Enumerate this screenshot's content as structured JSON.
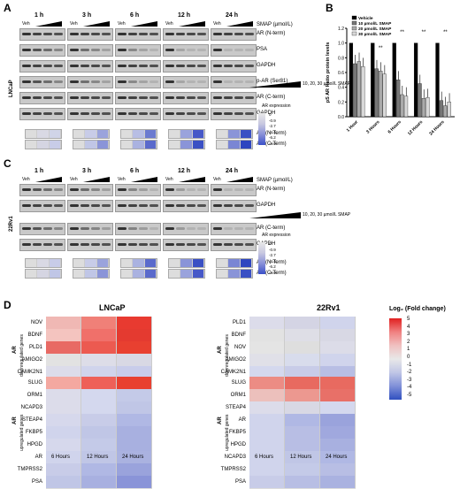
{
  "panels": {
    "A": "A",
    "B": "B",
    "C": "C",
    "D": "D"
  },
  "timepoints": [
    "1 h",
    "3 h",
    "6 h",
    "12 h",
    "24 h"
  ],
  "veh": "Veh",
  "panelA": {
    "cell_line": "LNCaP",
    "rows": [
      "SMAP (µmol/L)",
      "AR (N-term)",
      "PSA",
      "GAPDH",
      "p-AR (Ser81)",
      "AR (C-term)",
      "GAPDH"
    ],
    "dose_note": "10, 20, 30 µmol/L SMAP",
    "legend_title": "AR expression",
    "legend_values": [
      "0",
      "-0.9",
      "-2.7",
      "-4.4",
      "-6.2",
      "-8.0"
    ],
    "quant_rows": [
      "AR (N-Term)",
      "AR (C-Term)"
    ]
  },
  "panelB": {
    "ylabel": "pS AR Ratio protein levels",
    "legend": [
      "Vehicle",
      "10 µmol/L SMAP",
      "20 µmol/L SMAP",
      "30 µmol/L SMAP"
    ],
    "sig": "**",
    "chart_data": {
      "type": "bar",
      "categories": [
        "1 Hour",
        "3 Hours",
        "6 Hours",
        "12 Hours",
        "24 Hours"
      ],
      "series": [
        {
          "name": "Vehicle",
          "values": [
            1.0,
            1.0,
            1.0,
            1.0,
            1.0
          ]
        },
        {
          "name": "10 µmol/L SMAP",
          "values": [
            0.72,
            0.65,
            0.5,
            0.45,
            0.22
          ]
        },
        {
          "name": "20 µmol/L SMAP",
          "values": [
            0.75,
            0.62,
            0.3,
            0.25,
            0.15
          ]
        },
        {
          "name": "30 µmol/L SMAP",
          "values": [
            0.68,
            0.58,
            0.28,
            0.26,
            0.2
          ]
        }
      ],
      "ylim": [
        0,
        1.2
      ],
      "yticks": [
        "0.0",
        "0.2",
        "0.4",
        "0.6",
        "0.8",
        "1.0",
        "1.2"
      ]
    }
  },
  "panelC": {
    "cell_line": "22Rv1",
    "rows": [
      "SMAP (µmol/L)",
      "AR (N-term)",
      "GAPDH",
      "AR (C-term)",
      "GAPDH"
    ],
    "dose_note": "10, 20, 30 µmol/L SMAP",
    "legend_title": "AR expression",
    "legend_values": [
      "0",
      "-0.9",
      "-2.7",
      "-4.4",
      "-6.2",
      "-8.0"
    ],
    "quant_rows": [
      "AR (N-Term)",
      "AR (C-Term)"
    ]
  },
  "panelD": {
    "left_title": "LNCaP",
    "right_title": "22Rv1",
    "legend_title": "Log₂ (Fold change)",
    "legend_values": [
      "5",
      "4",
      "3",
      "2",
      "1",
      "0",
      "-1",
      "-2",
      "-3",
      "-4",
      "-5"
    ],
    "ar": "AR",
    "down": "downregulated genes",
    "up": "upregulated genes",
    "x": [
      "6 Hours",
      "12 Hours",
      "24 Hours"
    ],
    "left_down": [
      "NOV",
      "BDNF",
      "PLD1",
      "AMIGO2",
      "CAMK2N1"
    ],
    "left_up": [
      "SLUG",
      "ORM1",
      "NCAPD3",
      "STEAP4",
      "FKBP5",
      "HPGD",
      "AR",
      "TMPRSS2",
      "PSA"
    ],
    "right_down": [
      "PLD1",
      "BDNF",
      "NOV",
      "AMIGO2",
      "CAMK2N1"
    ],
    "right_up": [
      "SLUG",
      "ORM1",
      "STEAP4",
      "AR",
      "FKBP5",
      "HPGD",
      "NCAPD3",
      "TMPRSS2",
      "PSA"
    ]
  }
}
